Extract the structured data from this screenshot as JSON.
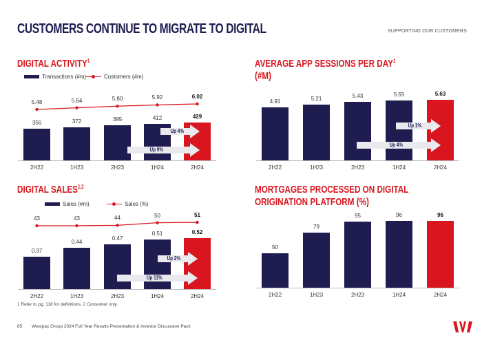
{
  "header": {
    "title": "CUSTOMERS CONTINUE TO MIGRATE TO DIGITAL",
    "section": "SUPPORTING OUR CUSTOMERS"
  },
  "colors": {
    "navy": "#1f1c4f",
    "red": "#d9161f",
    "arrow": "#e9e9ee"
  },
  "chart_data": [
    {
      "id": "digital-activity",
      "type": "bar",
      "title": "DIGITAL ACTIVITY",
      "title_sup": "1",
      "title_line2": "",
      "categories": [
        "2H22",
        "1H23",
        "2H23",
        "1H24",
        "2H24"
      ],
      "series": [
        {
          "name": "Transactions (#m)",
          "kind": "bar",
          "values": [
            356,
            372,
            395,
            412,
            429
          ],
          "labels": [
            "356",
            "372",
            "395",
            "412",
            "429"
          ]
        },
        {
          "name": "Customers (#m)",
          "kind": "line",
          "values": [
            5.48,
            5.64,
            5.8,
            5.92,
            6.02
          ],
          "labels": [
            "5.48",
            "5.64",
            "5.80",
            "5.92",
            "6.02"
          ]
        }
      ],
      "highlight": "2H24",
      "annotations": [
        {
          "text": "Up 4%"
        },
        {
          "text": "Up 9%"
        }
      ],
      "legend": "top-left",
      "grid": false
    },
    {
      "id": "app-sessions",
      "type": "bar",
      "title": "AVERAGE APP SESSIONS PER DAY",
      "title_sup": "1",
      "title_line2": "(#M)",
      "categories": [
        "2H22",
        "1H23",
        "2H23",
        "1H24",
        "2H24"
      ],
      "series": [
        {
          "kind": "bar",
          "values": [
            4.91,
            5.21,
            5.43,
            5.55,
            5.63
          ],
          "labels": [
            "4.91",
            "5.21",
            "5.43",
            "5.55",
            "5.63"
          ]
        }
      ],
      "highlight": "2H24",
      "annotations": [
        {
          "text": "Up 1%"
        },
        {
          "text": "Up 4%"
        }
      ],
      "grid": false
    },
    {
      "id": "digital-sales",
      "type": "bar",
      "title": "DIGITAL SALES",
      "title_sup": "1,2",
      "title_line2": "",
      "categories": [
        "2H22",
        "1H23",
        "2H23",
        "1H24",
        "2H24"
      ],
      "series": [
        {
          "name": "Sales (#m)",
          "kind": "bar",
          "values": [
            0.37,
            0.44,
            0.47,
            0.51,
            0.52
          ],
          "labels": [
            "0.37",
            "0.44",
            "0.47",
            "0.51",
            "0.52"
          ]
        },
        {
          "name": "Sales (%)",
          "kind": "line",
          "values": [
            43,
            43,
            44,
            50,
            51
          ],
          "labels": [
            "43",
            "43",
            "44",
            "50",
            "51"
          ]
        }
      ],
      "highlight": "2H24",
      "annotations": [
        {
          "text": "Up 2%"
        },
        {
          "text": "Up 11%"
        }
      ],
      "legend": "top-center",
      "grid": false
    },
    {
      "id": "mortgages",
      "type": "bar",
      "title": "MORTGAGES PROCESSED ON DIGITAL",
      "title_sup": "",
      "title_line2": "ORIGINATION PLATFORM (%)",
      "categories": [
        "2H22",
        "1H23",
        "2H23",
        "1H24",
        "2H24"
      ],
      "series": [
        {
          "kind": "bar",
          "values": [
            50,
            79,
            95,
            96,
            96
          ],
          "labels": [
            "50",
            "79",
            "95",
            "96",
            "96"
          ]
        }
      ],
      "highlight": "2H24",
      "annotations": [],
      "grid": false
    }
  ],
  "footnote": "1 Refer to pg. 118 for definitions. 2 Consumer only.",
  "footer": {
    "page": "85",
    "text": "Westpac Group 2024 Full Year Results Presentation & Investor Discussion Pack",
    "logo": "Westpac"
  }
}
